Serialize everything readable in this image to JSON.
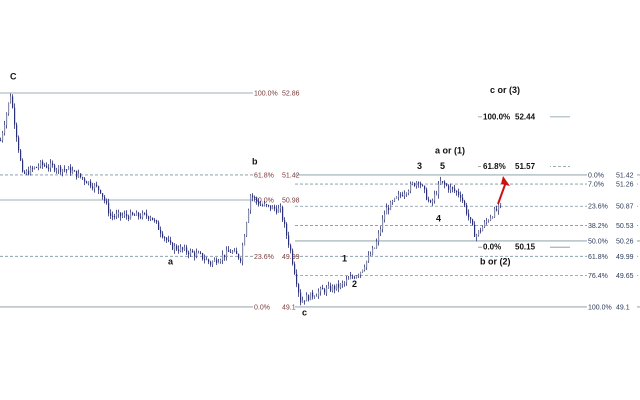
{
  "chart_data": {
    "type": "candlestick-with-fibonacci",
    "title": "",
    "xlabel": "",
    "ylabel": "",
    "ylim": [
      48.9,
      53.5
    ],
    "grid": false,
    "price_path": {
      "x": [
        0,
        10,
        22,
        40,
        70,
        100,
        110,
        150,
        170,
        200,
        210,
        230,
        240,
        250,
        260,
        280,
        290,
        300,
        320,
        340,
        360,
        375,
        385,
        400,
        418,
        430,
        440,
        460,
        475,
        490,
        500
      ],
      "y": [
        52.03,
        52.83,
        51.42,
        51.6,
        51.5,
        51.15,
        50.7,
        50.7,
        50.17,
        50.0,
        49.87,
        50.08,
        49.96,
        51.07,
        50.89,
        50.8,
        50.08,
        49.21,
        49.38,
        49.47,
        49.73,
        50.17,
        50.8,
        51.07,
        51.33,
        50.89,
        51.29,
        51.07,
        50.34,
        50.7,
        50.87
      ]
    },
    "fib_sets": [
      {
        "levels": [
          {
            "label": "100.0%",
            "value": "52.86"
          },
          {
            "label": "61.8%",
            "value": "51.42"
          },
          {
            "label": "50.0%",
            "value": "50.98"
          },
          {
            "label": "23.6%",
            "value": "49.99"
          },
          {
            "label": "0.0%",
            "value": "49.1"
          }
        ]
      },
      {
        "levels": [
          {
            "label": "0.0%",
            "value": "51.42"
          },
          {
            "label": "7.0%",
            "value": "51.26"
          },
          {
            "label": "23.6%",
            "value": "50.87"
          },
          {
            "label": "38.2%",
            "value": "50.53"
          },
          {
            "label": "50.0%",
            "value": "50.26"
          },
          {
            "label": "61.8%",
            "value": "49.99"
          },
          {
            "label": "76.4%",
            "value": "49.65"
          },
          {
            "label": "100.0%",
            "value": "49.1"
          }
        ]
      },
      {
        "levels": [
          {
            "label": "100.0%",
            "value": "52.44"
          },
          {
            "label": "61.8%",
            "value": "51.57"
          },
          {
            "label": "0.0%",
            "value": "50.15"
          }
        ]
      }
    ],
    "wave_labels": [
      {
        "text": "C",
        "x": 10,
        "price": 53.1
      },
      {
        "text": "a",
        "x": 168,
        "price": 49.85
      },
      {
        "text": "b",
        "x": 252,
        "price": 51.6
      },
      {
        "text": "c",
        "x": 302,
        "price": 48.95
      },
      {
        "text": "1",
        "x": 342,
        "price": 49.9
      },
      {
        "text": "2",
        "x": 352,
        "price": 49.45
      },
      {
        "text": "3",
        "x": 417,
        "price": 51.52
      },
      {
        "text": "4",
        "x": 436,
        "price": 50.6
      },
      {
        "text": "5",
        "x": 440,
        "price": 51.52
      },
      {
        "text": "a or (1)",
        "x": 435,
        "price": 51.8
      },
      {
        "text": "b or (2)",
        "x": 480,
        "price": 49.85
      },
      {
        "text": "c or (3)",
        "x": 490,
        "price": 52.86
      }
    ],
    "colors": {
      "candle": "#2a2f7a",
      "fib_line": "#6f8a96",
      "label_left": "#7a3b3b",
      "arrow": "#cc1111"
    }
  }
}
